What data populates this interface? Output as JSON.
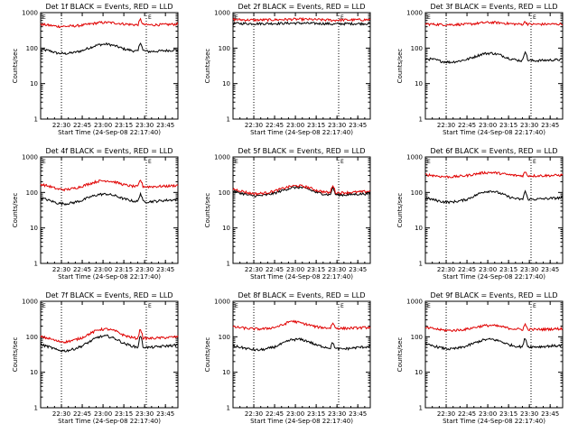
{
  "chart_data": {
    "type": "line",
    "layout": "3x3 grid",
    "y_scale": "log",
    "ylim": [
      1,
      1000
    ],
    "y_ticks": [
      "1",
      "10",
      "100",
      "1000"
    ],
    "xlim": [
      22.25,
      23.9
    ],
    "x_ticks": [
      {
        "v": 22.5,
        "label": "22:30"
      },
      {
        "v": 22.75,
        "label": "22:45"
      },
      {
        "v": 23.0,
        "label": "23:00"
      },
      {
        "v": 23.25,
        "label": "23:15"
      },
      {
        "v": 23.5,
        "label": "23:30"
      },
      {
        "v": 23.75,
        "label": "23:45"
      }
    ],
    "dotted_lines_x": [
      22.5,
      23.52
    ],
    "ylabel": "Counts/sec",
    "xlabel": "Start Time (24-Sep-08 22:17:40)",
    "corner_marks": {
      "left": "E",
      "right": "E"
    },
    "legend_note": "BLACK = Events, RED = LLD",
    "series_colors": {
      "events": "#000000",
      "lld": "#e00000"
    },
    "x": [
      22.25,
      22.35,
      22.45,
      22.55,
      22.65,
      22.75,
      22.85,
      22.95,
      23.05,
      23.15,
      23.25,
      23.35,
      23.42,
      23.45,
      23.48,
      23.55,
      23.65,
      23.75,
      23.85,
      23.9
    ],
    "panels": [
      {
        "title": "Det 1f BLACK = Events, RED = LLD",
        "series": [
          {
            "name": "Events",
            "color": "#000000",
            "values": [
              90,
              85,
              72,
              70,
              75,
              85,
              105,
              125,
              130,
              115,
              95,
              85,
              80,
              150,
              85,
              80,
              82,
              85,
              88,
              90
            ]
          },
          {
            "name": "LLD",
            "color": "#e00000",
            "values": [
              470,
              440,
              410,
              410,
              420,
              440,
              480,
              520,
              530,
              510,
              480,
              460,
              450,
              650,
              460,
              450,
              455,
              460,
              470,
              480
            ]
          }
        ]
      },
      {
        "title": "Det 2f BLACK = Events, RED = LLD",
        "series": [
          {
            "name": "Events",
            "color": "#000000",
            "values": [
              500,
              495,
              490,
              490,
              492,
              495,
              500,
              505,
              505,
              500,
              495,
              490,
              485,
              470,
              480,
              485,
              488,
              490,
              492,
              495
            ]
          },
          {
            "name": "LLD",
            "color": "#e00000",
            "values": [
              640,
              630,
              620,
              620,
              625,
              630,
              640,
              650,
              650,
              645,
              635,
              625,
              620,
              600,
              615,
              620,
              625,
              628,
              630,
              635
            ]
          }
        ]
      },
      {
        "title": "Det 3f BLACK = Events, RED = LLD",
        "series": [
          {
            "name": "Events",
            "color": "#000000",
            "values": [
              50,
              48,
              42,
              40,
              43,
              48,
              58,
              70,
              72,
              64,
              52,
              46,
              44,
              85,
              46,
              44,
              45,
              46,
              47,
              48
            ]
          },
          {
            "name": "LLD",
            "color": "#e00000",
            "values": [
              480,
              470,
              460,
              460,
              465,
              470,
              490,
              520,
              530,
              515,
              490,
              475,
              470,
              560,
              475,
              470,
              472,
              474,
              476,
              478
            ]
          }
        ]
      },
      {
        "title": "Det 4f BLACK = Events, RED = LLD",
        "series": [
          {
            "name": "Events",
            "color": "#000000",
            "values": [
              70,
              60,
              50,
              48,
              52,
              60,
              75,
              88,
              90,
              80,
              66,
              58,
              55,
              95,
              56,
              55,
              57,
              60,
              62,
              65
            ]
          },
          {
            "name": "LLD",
            "color": "#e00000",
            "values": [
              170,
              150,
              125,
              120,
              130,
              150,
              180,
              210,
              215,
              195,
              165,
              150,
              145,
              230,
              148,
              145,
              148,
              150,
              155,
              160
            ]
          }
        ]
      },
      {
        "title": "Det 5f BLACK = Events, RED = LLD",
        "series": [
          {
            "name": "Events",
            "color": "#000000",
            "values": [
              110,
              95,
              82,
              80,
              85,
              95,
              115,
              135,
              140,
              125,
              100,
              90,
              85,
              140,
              88,
              85,
              87,
              90,
              92,
              95
            ]
          },
          {
            "name": "LLD",
            "color": "#e00000",
            "values": [
              125,
              110,
              95,
              92,
              98,
              110,
              130,
              150,
              155,
              140,
              115,
              103,
              98,
              165,
              100,
              98,
              100,
              103,
              106,
              110
            ]
          }
        ]
      },
      {
        "title": "Det 6f BLACK = Events, RED = LLD",
        "series": [
          {
            "name": "Events",
            "color": "#000000",
            "values": [
              70,
              62,
              55,
              53,
              57,
              64,
              82,
              105,
              110,
              95,
              75,
              66,
              63,
              110,
              65,
              64,
              66,
              68,
              70,
              72
            ]
          },
          {
            "name": "LLD",
            "color": "#e00000",
            "values": [
              320,
              300,
              280,
              275,
              285,
              300,
              330,
              360,
              365,
              345,
              315,
              300,
              295,
              380,
              298,
              295,
              298,
              300,
              305,
              310
            ]
          }
        ]
      },
      {
        "title": "Det 7f BLACK = Events, RED = LLD",
        "series": [
          {
            "name": "Events",
            "color": "#000000",
            "values": [
              60,
              52,
              42,
              40,
              45,
              55,
              75,
              100,
              105,
              88,
              65,
              55,
              50,
              110,
              52,
              50,
              52,
              55,
              57,
              60
            ]
          },
          {
            "name": "LLD",
            "color": "#e00000",
            "values": [
              100,
              90,
              75,
              72,
              80,
              95,
              125,
              160,
              165,
              145,
              110,
              95,
              90,
              170,
              92,
              90,
              92,
              95,
              98,
              100
            ]
          }
        ]
      },
      {
        "title": "Det 8f BLACK = Events, RED = LLD",
        "series": [
          {
            "name": "Events",
            "color": "#000000",
            "values": [
              55,
              50,
              45,
              42,
              45,
              52,
              65,
              82,
              85,
              75,
              58,
              52,
              48,
              70,
              46,
              45,
              47,
              50,
              52,
              55
            ]
          },
          {
            "name": "LLD",
            "color": "#e00000",
            "values": [
              190,
              180,
              170,
              165,
              170,
              185,
              215,
              280,
              250,
              220,
              190,
              180,
              175,
              250,
              178,
              172,
              175,
              178,
              182,
              185
            ]
          }
        ]
      },
      {
        "title": "Det 9f BLACK = Events, RED = LLD",
        "series": [
          {
            "name": "Events",
            "color": "#000000",
            "values": [
              60,
              55,
              48,
              45,
              48,
              55,
              68,
              82,
              85,
              75,
              60,
              54,
              52,
              95,
              53,
              52,
              53,
              55,
              56,
              58
            ]
          },
          {
            "name": "LLD",
            "color": "#e00000",
            "values": [
              180,
              170,
              155,
              150,
              155,
              165,
              185,
              205,
              210,
              195,
              175,
              165,
              160,
              225,
              162,
              160,
              162,
              165,
              168,
              170
            ]
          }
        ]
      }
    ]
  }
}
